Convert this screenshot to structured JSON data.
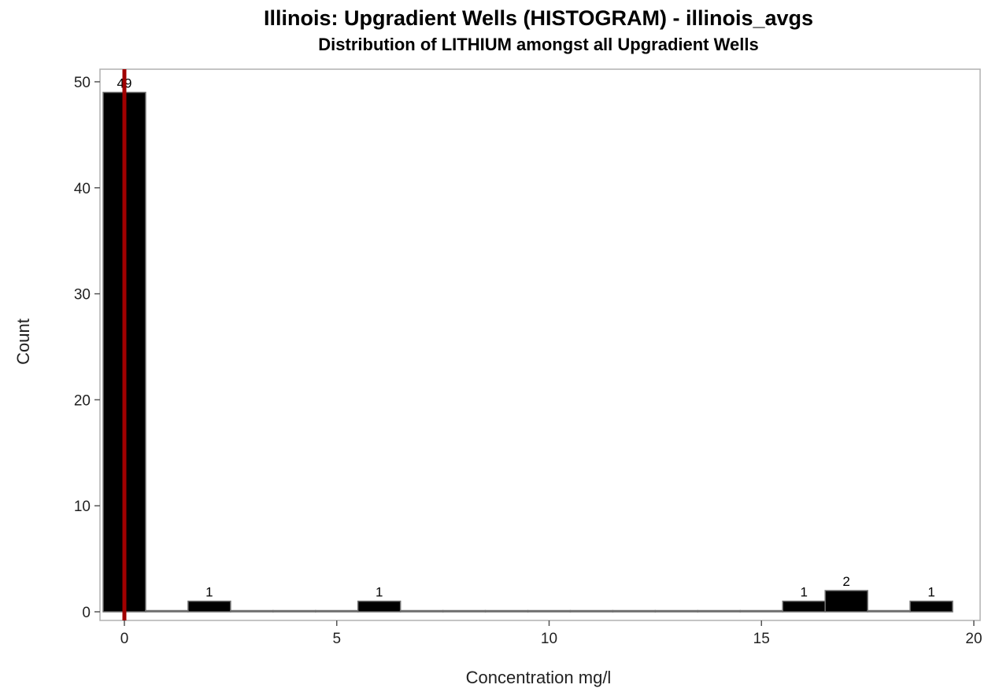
{
  "chart_data": {
    "type": "bar",
    "title": "Illinois: Upgradient Wells (HISTOGRAM) - illinois_avgs",
    "subtitle": "Distribution of LITHIUM amongst all Upgradient Wells",
    "xlabel": "Concentration mg/l",
    "ylabel": "Count",
    "xlim": [
      -0.6,
      20
    ],
    "ylim": [
      0,
      51
    ],
    "xticks": [
      0,
      5,
      10,
      15,
      20
    ],
    "yticks": [
      0,
      10,
      20,
      30,
      40,
      50
    ],
    "bin_width": 1,
    "bins": [
      {
        "center": 0,
        "count": 49,
        "label": "49"
      },
      {
        "center": 1,
        "count": 0
      },
      {
        "center": 2,
        "count": 1,
        "label": "1"
      },
      {
        "center": 3,
        "count": 0
      },
      {
        "center": 4,
        "count": 0
      },
      {
        "center": 5,
        "count": 0
      },
      {
        "center": 6,
        "count": 1,
        "label": "1"
      },
      {
        "center": 7,
        "count": 0
      },
      {
        "center": 8,
        "count": 0
      },
      {
        "center": 9,
        "count": 0
      },
      {
        "center": 10,
        "count": 0
      },
      {
        "center": 11,
        "count": 0
      },
      {
        "center": 12,
        "count": 0
      },
      {
        "center": 13,
        "count": 0
      },
      {
        "center": 14,
        "count": 0
      },
      {
        "center": 15,
        "count": 0
      },
      {
        "center": 16,
        "count": 1,
        "label": "1"
      },
      {
        "center": 17,
        "count": 2,
        "label": "2"
      },
      {
        "center": 18,
        "count": 0
      },
      {
        "center": 19,
        "count": 1,
        "label": "1"
      }
    ],
    "reference_line": {
      "x": 0,
      "color": "#a00000"
    },
    "bar_color": "#000000",
    "grid": false,
    "legend": "none"
  }
}
